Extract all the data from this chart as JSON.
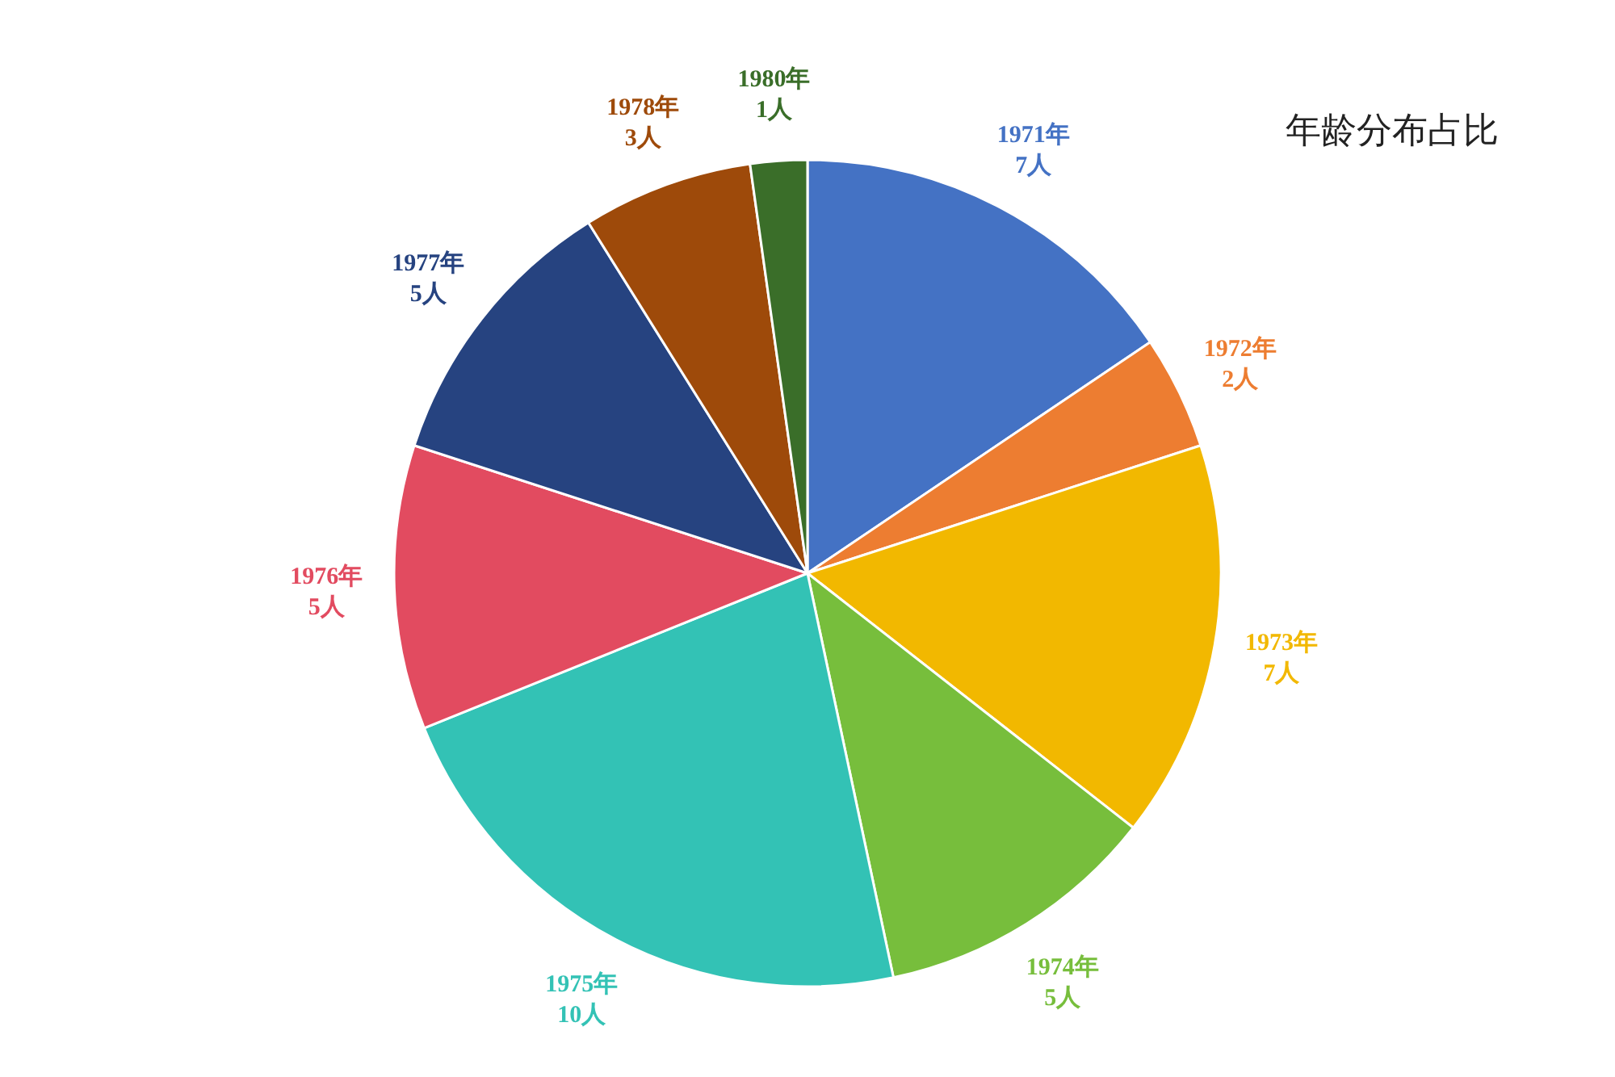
{
  "chart_data": {
    "type": "pie",
    "title": "年龄分布占比",
    "categories": [
      "1971年",
      "1972年",
      "1973年",
      "1974年",
      "1975年",
      "1976年",
      "1977年",
      "1978年",
      "1980年"
    ],
    "values": [
      7,
      2,
      7,
      5,
      10,
      5,
      5,
      3,
      1
    ],
    "value_labels": [
      "7人",
      "2人",
      "7人",
      "5人",
      "10人",
      "5人",
      "5人",
      "3人",
      "1人"
    ],
    "colors": [
      "#4472c4",
      "#ed7d31",
      "#f2b800",
      "#77be3c",
      "#33c2b5",
      "#e24b60",
      "#264380",
      "#9e4a0a",
      "#3a6e29"
    ]
  }
}
